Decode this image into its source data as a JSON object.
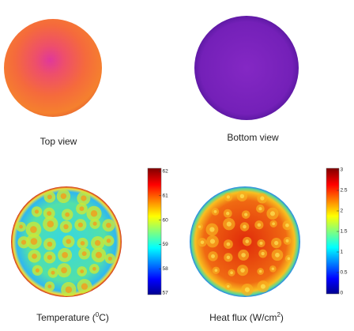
{
  "panels": [
    {
      "caption": "Top view"
    },
    {
      "caption": "Bottom view"
    },
    {
      "caption": {
        "text": "Temperature (",
        "superscript": "0",
        "suffix": "C)"
      },
      "colorbar": {
        "ticks": [
          62,
          61,
          60,
          59,
          58,
          57
        ]
      }
    },
    {
      "caption": {
        "text": "Heat flux (W/cm",
        "superscript": "2",
        "suffix": ")"
      },
      "colorbar": {
        "ticks": [
          3,
          2.5,
          2,
          1.5,
          1,
          0.5,
          0
        ]
      }
    }
  ]
}
